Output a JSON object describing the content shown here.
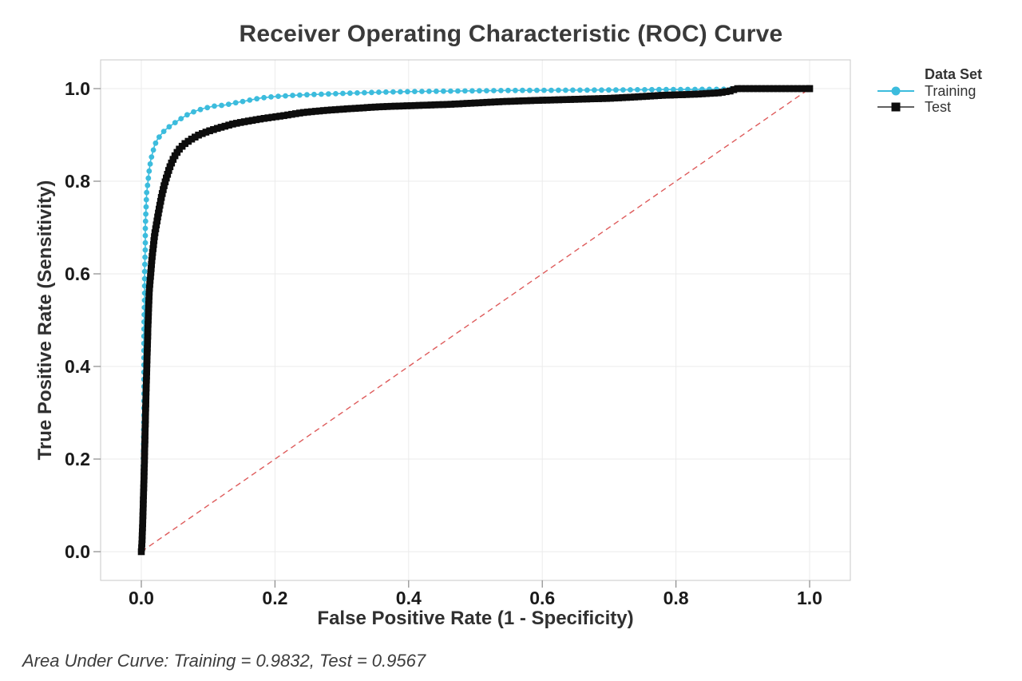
{
  "title": "Receiver Operating Characteristic (ROC) Curve",
  "footer": "Area Under Curve: Training = 0.9832, Test = 0.9567",
  "legend": {
    "title": "Data Set",
    "items": [
      {
        "label": "Training",
        "marker": "circle",
        "marker_color": "#3CBCDD",
        "line_color": "#3CBCDD"
      },
      {
        "label": "Test",
        "marker": "square",
        "marker_color": "#0d0d0d",
        "line_color": "#4a4a4a"
      }
    ]
  },
  "chart_data": {
    "type": "line",
    "title": "Receiver Operating Characteristic (ROC) Curve",
    "xlabel": "False Positive Rate (1 - Specificity)",
    "ylabel": "True Positive Rate (Sensitivity)",
    "xlim": [
      0,
      1
    ],
    "ylim": [
      0,
      1
    ],
    "grid": true,
    "legend_position": "right",
    "x_ticks": [
      {
        "value": 0.0,
        "label": "0.0"
      },
      {
        "value": 0.2,
        "label": "0.2"
      },
      {
        "value": 0.4,
        "label": "0.4"
      },
      {
        "value": 0.6,
        "label": "0.6"
      },
      {
        "value": 0.8,
        "label": "0.8"
      },
      {
        "value": 1.0,
        "label": "1.0"
      }
    ],
    "y_ticks": [
      {
        "value": 0.0,
        "label": "0.0"
      },
      {
        "value": 0.2,
        "label": "0.2"
      },
      {
        "value": 0.4,
        "label": "0.4"
      },
      {
        "value": 0.6,
        "label": "0.6"
      },
      {
        "value": 0.8,
        "label": "0.8"
      },
      {
        "value": 1.0,
        "label": "1.0"
      }
    ],
    "reference_line": {
      "from": [
        0,
        0
      ],
      "to": [
        1,
        1
      ],
      "style": "dashed",
      "color": "#DE5B5B"
    },
    "series": [
      {
        "name": "Training",
        "auc": 0.9832,
        "color": "#3CBCDD",
        "marker": "circle",
        "points": [
          [
            0,
            0
          ],
          [
            0.002,
            0.05
          ],
          [
            0.003,
            0.12
          ],
          [
            0.003,
            0.2
          ],
          [
            0.004,
            0.3
          ],
          [
            0.004,
            0.4
          ],
          [
            0.004,
            0.48
          ],
          [
            0.005,
            0.55
          ],
          [
            0.005,
            0.61
          ],
          [
            0.006,
            0.66
          ],
          [
            0.006,
            0.7
          ],
          [
            0.007,
            0.74
          ],
          [
            0.008,
            0.775
          ],
          [
            0.01,
            0.8
          ],
          [
            0.012,
            0.825
          ],
          [
            0.014,
            0.845
          ],
          [
            0.017,
            0.862
          ],
          [
            0.02,
            0.878
          ],
          [
            0.024,
            0.89
          ],
          [
            0.029,
            0.9
          ],
          [
            0.035,
            0.91
          ],
          [
            0.042,
            0.918
          ],
          [
            0.05,
            0.926
          ],
          [
            0.058,
            0.934
          ],
          [
            0.068,
            0.943
          ],
          [
            0.08,
            0.951
          ],
          [
            0.093,
            0.957
          ],
          [
            0.108,
            0.962
          ],
          [
            0.125,
            0.9645
          ],
          [
            0.143,
            0.97
          ],
          [
            0.16,
            0.9745
          ],
          [
            0.18,
            0.98
          ],
          [
            0.205,
            0.9835
          ],
          [
            0.235,
            0.986
          ],
          [
            0.27,
            0.988
          ],
          [
            0.31,
            0.99
          ],
          [
            0.36,
            0.9925
          ],
          [
            0.42,
            0.994
          ],
          [
            0.48,
            0.995
          ],
          [
            0.55,
            0.996
          ],
          [
            0.62,
            0.9965
          ],
          [
            0.7,
            0.997
          ],
          [
            0.78,
            0.998
          ],
          [
            0.86,
            0.9985
          ],
          [
            0.93,
            0.999
          ],
          [
            1.0,
            1.0
          ]
        ]
      },
      {
        "name": "Test",
        "auc": 0.9567,
        "color": "#0d0d0d",
        "marker": "square",
        "points": [
          [
            0,
            0
          ],
          [
            0.001,
            0.02
          ],
          [
            0.002,
            0.06
          ],
          [
            0.003,
            0.11
          ],
          [
            0.004,
            0.16
          ],
          [
            0.005,
            0.22
          ],
          [
            0.006,
            0.28
          ],
          [
            0.007,
            0.34
          ],
          [
            0.008,
            0.39
          ],
          [
            0.009,
            0.44
          ],
          [
            0.01,
            0.49
          ],
          [
            0.011,
            0.53
          ],
          [
            0.012,
            0.565
          ],
          [
            0.014,
            0.6
          ],
          [
            0.016,
            0.635
          ],
          [
            0.018,
            0.66
          ],
          [
            0.02,
            0.685
          ],
          [
            0.023,
            0.71
          ],
          [
            0.026,
            0.735
          ],
          [
            0.03,
            0.765
          ],
          [
            0.034,
            0.79
          ],
          [
            0.038,
            0.81
          ],
          [
            0.043,
            0.832
          ],
          [
            0.049,
            0.852
          ],
          [
            0.056,
            0.868
          ],
          [
            0.064,
            0.88
          ],
          [
            0.074,
            0.89
          ],
          [
            0.086,
            0.9
          ],
          [
            0.1,
            0.908
          ],
          [
            0.118,
            0.916
          ],
          [
            0.138,
            0.924
          ],
          [
            0.16,
            0.93
          ],
          [
            0.185,
            0.936
          ],
          [
            0.21,
            0.941
          ],
          [
            0.24,
            0.948
          ],
          [
            0.275,
            0.953
          ],
          [
            0.315,
            0.957
          ],
          [
            0.36,
            0.961
          ],
          [
            0.41,
            0.9635
          ],
          [
            0.46,
            0.966
          ],
          [
            0.5,
            0.969
          ],
          [
            0.54,
            0.972
          ],
          [
            0.59,
            0.9745
          ],
          [
            0.64,
            0.9765
          ],
          [
            0.7,
            0.979
          ],
          [
            0.74,
            0.982
          ],
          [
            0.78,
            0.9855
          ],
          [
            0.83,
            0.988
          ],
          [
            0.865,
            0.991
          ],
          [
            0.882,
            0.995
          ],
          [
            0.89,
            1.0
          ],
          [
            1.0,
            1.0
          ]
        ]
      }
    ],
    "annotations": [
      "Area Under Curve: Training = 0.9832, Test = 0.9567"
    ],
    "colors": {
      "grid": "#ebebeb",
      "plot_border": "#c8c8c8",
      "tick": "#8a8a8a"
    }
  }
}
